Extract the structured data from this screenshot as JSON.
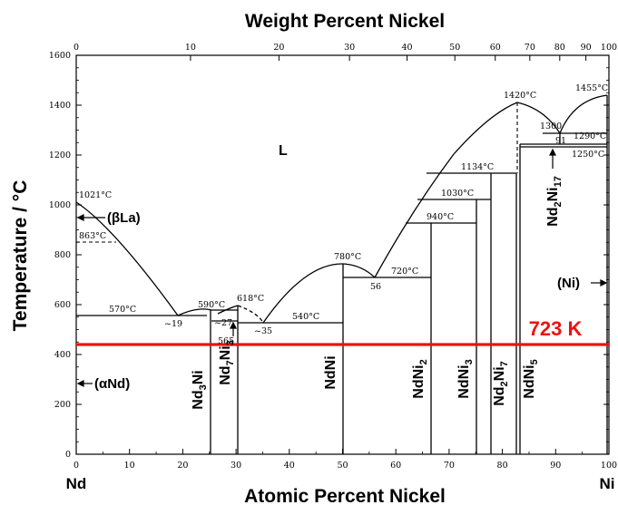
{
  "titles": {
    "top": "Weight Percent Nickel",
    "bottom": "Atomic Percent Nickel",
    "yaxis": "Temperature / °C"
  },
  "axis": {
    "x_atomic_ticks": [
      "0",
      "10",
      "20",
      "30",
      "40",
      "50",
      "60",
      "70",
      "80",
      "90",
      "100"
    ],
    "x_weight_ticks": [
      "0",
      "10",
      "20",
      "30",
      "40",
      "50",
      "60",
      "70",
      "80",
      "90",
      "100"
    ],
    "y_ticks": [
      "0",
      "200",
      "400",
      "600",
      "800",
      "1000",
      "1200",
      "1400",
      "1600"
    ],
    "left_end": "Nd",
    "right_end": "Ni"
  },
  "labels": {
    "liquid": "L",
    "beta_la": "(βLa)",
    "alpha_nd": "(αNd)",
    "ni": "(Ni)"
  },
  "temps": {
    "t1021": "1021°C",
    "t863": "863°C",
    "t570": "570°C",
    "t590": "590°C",
    "t618": "618°C",
    "t540": "540°C",
    "t780": "780°C",
    "t720": "720°C",
    "t940": "940°C",
    "t1030": "1030°C",
    "t1134": "1134°C",
    "t1420": "1420°C",
    "t1300": "1300",
    "t1455": "1455°C",
    "t1290": "1290°C",
    "t1250": "1250°C"
  },
  "comps": {
    "c19": "~19",
    "c27": "~27",
    "c35": "~35",
    "c565": "565",
    "c56": "56",
    "c91": "91"
  },
  "highlight": {
    "label": "723 K",
    "color": "#ee1111"
  },
  "phases": {
    "nd3ni": [
      "Nd",
      "3",
      "Ni"
    ],
    "nd7ni3": [
      "Nd",
      "7",
      "Ni",
      "3"
    ],
    "ndni": "NdNi",
    "ndni2": [
      "NdNi",
      "2"
    ],
    "ndni3": [
      "NdNi",
      "3"
    ],
    "nd2ni7": [
      "Nd",
      "2",
      "Ni",
      "7"
    ],
    "ndni5": [
      "NdNi",
      "5"
    ],
    "nd2ni17": [
      "Nd",
      "2",
      "Ni",
      "17"
    ]
  }
}
